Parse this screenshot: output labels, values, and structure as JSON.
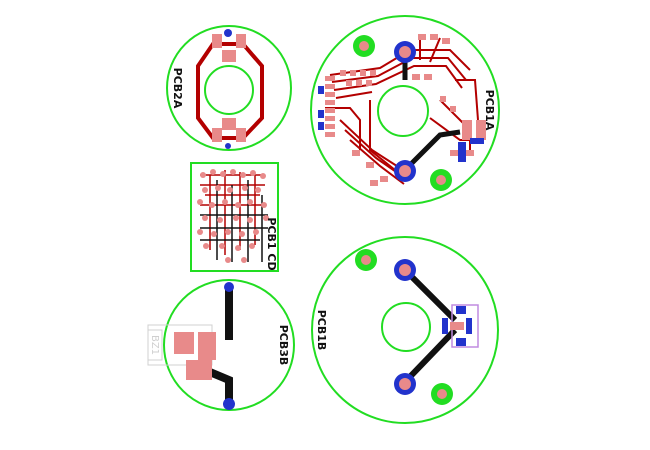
{
  "boards": {
    "pcb2a": {
      "label": "PCB2A"
    },
    "pcb1a": {
      "label": "PCB1A"
    },
    "pcb1c": {
      "label": "PCB1 CD"
    },
    "pcb1b": {
      "label": "PCB1B"
    },
    "pcb3b": {
      "label": "PCB3B"
    }
  },
  "part_label": "BZ1",
  "colors": {
    "outline": "#22dd22",
    "copper_top": "#b30000",
    "pad": "#e88a8a",
    "via": "#2233cc",
    "trace_bottom": "#111111",
    "component_outline": "#c08be0",
    "silkscreen": "#d0d0d0"
  }
}
